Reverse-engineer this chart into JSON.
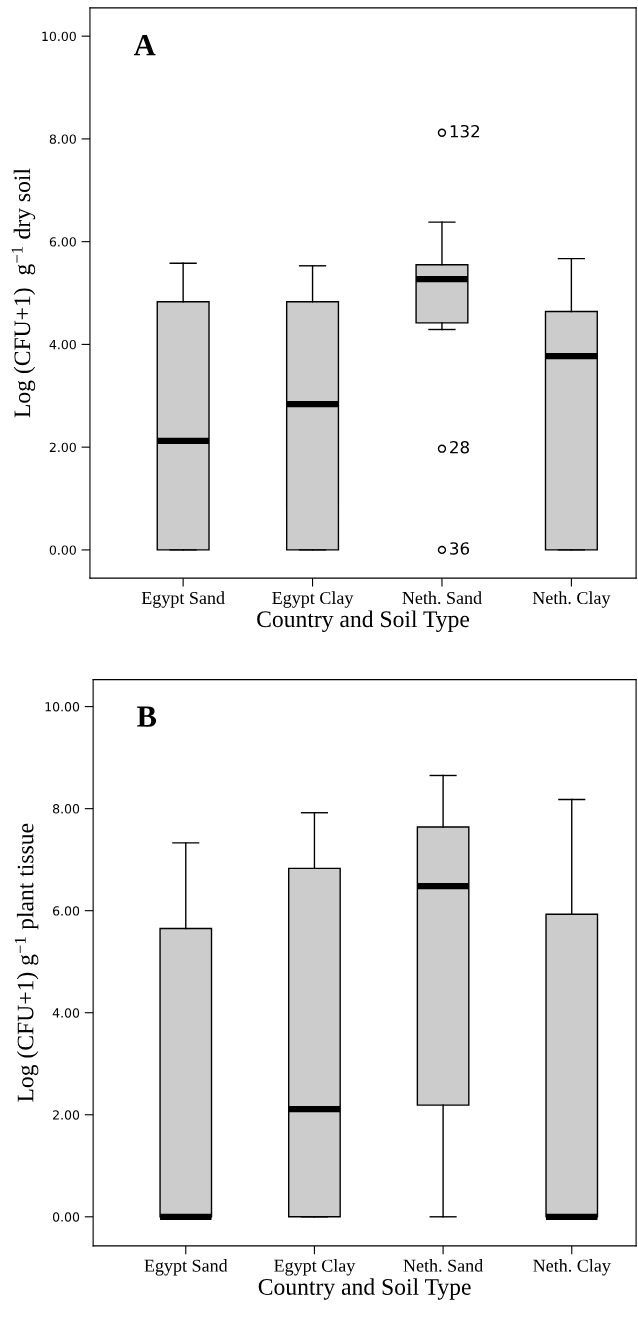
{
  "chart_data": [
    {
      "type": "box",
      "title": "A",
      "xlabel": "Country and Soil Type",
      "ylabel": "Log (CFU+1)  g$^{−1}$ dry soil",
      "categories": [
        "Egypt Sand",
        "Egypt Clay",
        "Neth. Sand",
        "Neth. Clay"
      ],
      "series": [
        {
          "color": "#cccccc",
          "boxes": [
            {
              "low": 0,
              "q1": 0,
              "median": 2.12,
              "q3": 4.83,
              "high": 5.58
            },
            {
              "low": 0,
              "q1": 0,
              "median": 2.84,
              "q3": 4.83,
              "high": 5.53
            },
            {
              "low": 4.29,
              "q1": 4.42,
              "median": 5.27,
              "q3": 5.55,
              "high": 6.38,
              "outliers": [
                8.12,
                1.97,
                0
              ]
            },
            {
              "low": 0,
              "q1": 0,
              "median": 3.77,
              "q3": 4.64,
              "high": 5.67
            }
          ]
        }
      ],
      "ylim": [
        -0.55,
        10.55
      ],
      "yticks": [
        {
          "value": 0,
          "label": "0.00"
        },
        {
          "value": 2,
          "label": "2.00"
        },
        {
          "value": 4,
          "label": "4.00"
        },
        {
          "value": 6,
          "label": "6.00"
        },
        {
          "value": 8,
          "label": "8.00"
        },
        {
          "value": 10,
          "label": "10.00"
        }
      ],
      "annotations": [
        "132",
        "28",
        "36"
      ],
      "grid": false,
      "legend": false
    },
    {
      "type": "box",
      "title": "B",
      "xlabel": "Country and Soil Type",
      "ylabel": "Log (CFU+1) g$^{−1}$ plant tissue",
      "categories": [
        "Egypt Sand",
        "Egypt Clay",
        "Neth. Sand",
        "Neth. Clay"
      ],
      "series": [
        {
          "color": "#cccccc",
          "boxes": [
            {
              "low": 0,
              "q1": 0,
              "median": 0,
              "q3": 5.65,
              "high": 7.33
            },
            {
              "low": 0,
              "q1": 0,
              "median": 2.11,
              "q3": 6.83,
              "high": 7.92
            },
            {
              "low": 0,
              "q1": 2.19,
              "median": 6.48,
              "q3": 7.64,
              "high": 8.65
            },
            {
              "low": 0,
              "q1": 0,
              "median": 0,
              "q3": 5.93,
              "high": 8.18
            }
          ]
        }
      ],
      "ylim": [
        -0.57,
        10.53
      ],
      "yticks": [
        {
          "value": 0,
          "label": "0.00"
        },
        {
          "value": 2,
          "label": "2.00"
        },
        {
          "value": 4,
          "label": "4.00"
        },
        {
          "value": 6,
          "label": "6.00"
        },
        {
          "value": 8,
          "label": "8.00"
        },
        {
          "value": 10,
          "label": "10.00"
        }
      ],
      "grid": false,
      "legend": false
    }
  ]
}
